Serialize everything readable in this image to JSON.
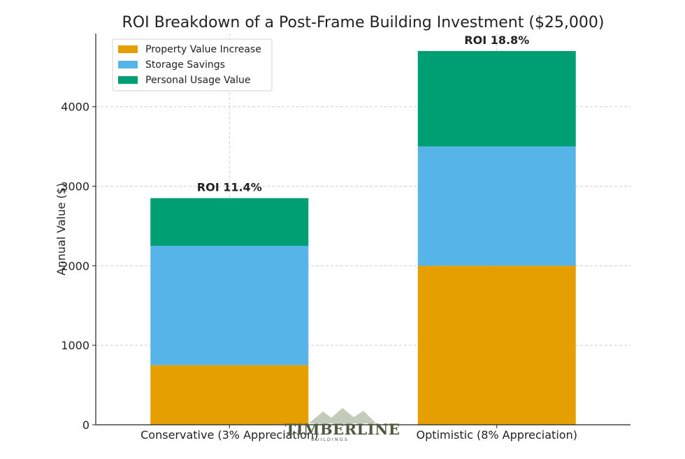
{
  "chart_data": {
    "type": "bar",
    "stacked": true,
    "title": "ROI Breakdown of a Post-Frame Building Investment ($25,000)",
    "xlabel": "",
    "ylabel": "Annual Value ($)",
    "ylim": [
      0,
      4920
    ],
    "yticks": [
      0,
      1000,
      2000,
      3000,
      4000
    ],
    "grid": true,
    "legend_position": "top-left",
    "categories": [
      "Conservative (3% Appreciation)",
      "Optimistic (8% Appreciation)"
    ],
    "series": [
      {
        "name": "Property Value Increase",
        "color": "#e69f00",
        "values": [
          750,
          2000
        ]
      },
      {
        "name": "Storage Savings",
        "color": "#56b4e9",
        "values": [
          1500,
          1500
        ]
      },
      {
        "name": "Personal Usage Value",
        "color": "#009e73",
        "values": [
          600,
          1200
        ]
      }
    ],
    "annotations": [
      "ROI 11.4%",
      "ROI 18.8%"
    ]
  },
  "watermark": {
    "text": "TIMBERLINE",
    "subtext": "BUILDINGS",
    "icon": "mountain-logo-icon"
  }
}
